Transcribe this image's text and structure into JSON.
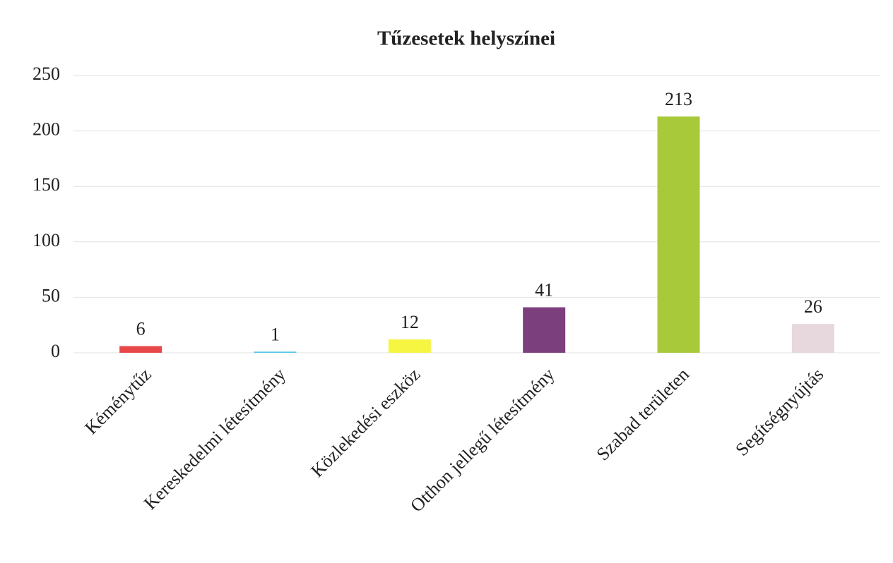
{
  "chart_data": {
    "type": "bar",
    "title": "Tűzesetek helyszínei",
    "categories": [
      "Kéménytűz",
      "Kereskedelmi létesítmény",
      "Közlekedési eszköz",
      "Otthon jellegű létesítmény",
      "Szabad területen",
      "Segítségnyújtás"
    ],
    "values": [
      6,
      1,
      12,
      41,
      213,
      26
    ],
    "colors": [
      "#e8474a",
      "#4fc3e8",
      "#f5f542",
      "#7b3f7e",
      "#a8c93a",
      "#e6d8dc"
    ],
    "ylim": [
      0,
      250
    ],
    "yticks": [
      0,
      50,
      100,
      150,
      200,
      250
    ],
    "grid": true
  }
}
